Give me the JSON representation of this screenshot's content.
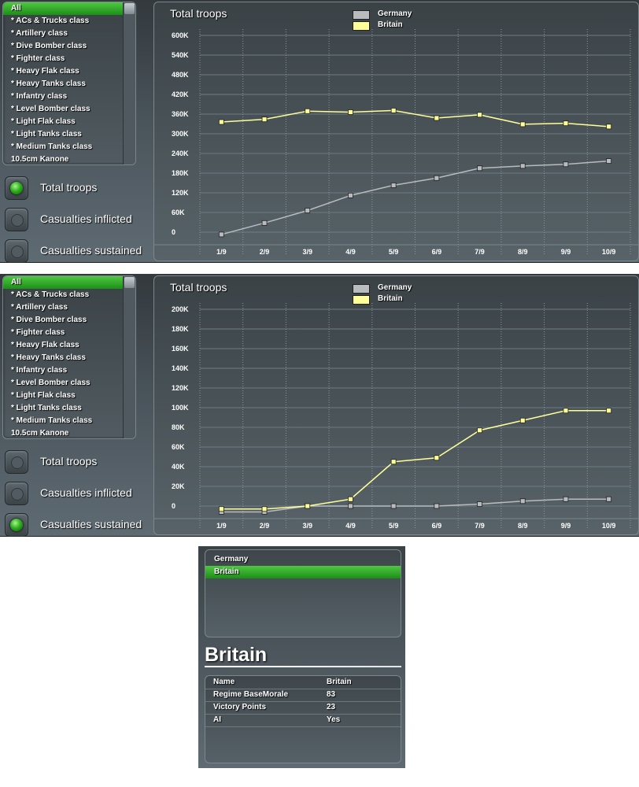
{
  "unit_list": {
    "items": [
      "All",
      "* ACs & Trucks class",
      "* Artillery class",
      "* Dive Bomber class",
      "* Fighter class",
      "* Heavy Flak class",
      "* Heavy Tanks class",
      "* Infantry class",
      "* Level Bomber class",
      "* Light Flak class",
      "* Light Tanks class",
      "* Medium Tanks class",
      "10.5cm Kanone"
    ],
    "selected": "All"
  },
  "radio_options": [
    "Total troops",
    "Casualties inflicted",
    "Casualties sustained"
  ],
  "legend": [
    {
      "name": "Germany",
      "color": "#b8bcbf"
    },
    {
      "name": "Britain",
      "color": "#ffff99"
    }
  ],
  "panels": [
    {
      "selected_option": "Total troops",
      "chart_data": {
        "type": "line",
        "title": "Total troops",
        "xlabel": "",
        "ylabel": "",
        "categories": [
          "1/9",
          "2/9",
          "3/9",
          "4/9",
          "5/9",
          "6/9",
          "7/9",
          "8/9",
          "9/9",
          "10/9"
        ],
        "y_ticks": [
          "0",
          "60K",
          "120K",
          "180K",
          "240K",
          "300K",
          "360K",
          "420K",
          "480K",
          "540K",
          "600K"
        ],
        "ylim": [
          0,
          600000
        ],
        "grid": true,
        "legend_position": "top",
        "series": [
          {
            "name": "Germany",
            "color": "#b8bcbf",
            "values": [
              -7000,
              28000,
              66000,
              112000,
              143000,
              165000,
              195000,
              202000,
              207000,
              217000
            ]
          },
          {
            "name": "Britain",
            "color": "#ffff99",
            "values": [
              336000,
              344000,
              369000,
              366000,
              371000,
              348000,
              358000,
              329000,
              332000,
              322000
            ]
          }
        ]
      }
    },
    {
      "selected_option": "Casualties sustained",
      "chart_data": {
        "type": "line",
        "title": "Total troops",
        "xlabel": "",
        "ylabel": "",
        "categories": [
          "1/9",
          "2/9",
          "3/9",
          "4/9",
          "5/9",
          "6/9",
          "7/9",
          "8/9",
          "9/9",
          "10/9"
        ],
        "y_ticks": [
          "0",
          "20K",
          "40K",
          "60K",
          "80K",
          "100K",
          "120K",
          "140K",
          "160K",
          "180K",
          "200K"
        ],
        "ylim": [
          0,
          200000
        ],
        "grid": true,
        "legend_position": "top",
        "series": [
          {
            "name": "Germany",
            "color": "#b8bcbf",
            "values": [
              -6000,
              -6000,
              0,
              0,
              0,
              0,
              2000,
              5000,
              7000,
              7000
            ]
          },
          {
            "name": "Britain",
            "color": "#ffff99",
            "values": [
              -3000,
              -3000,
              0,
              7000,
              45000,
              49000,
              77000,
              87000,
              97000,
              97000
            ]
          }
        ]
      }
    }
  ],
  "properties": {
    "countries": [
      "Germany",
      "Britain"
    ],
    "selected_country": "Britain",
    "title": "Britain",
    "rows": [
      {
        "key": "Name",
        "value": "Britain"
      },
      {
        "key": "Regime BaseMorale",
        "value": "83"
      },
      {
        "key": "Victory Points",
        "value": "23"
      },
      {
        "key": "AI",
        "value": "Yes"
      }
    ]
  }
}
